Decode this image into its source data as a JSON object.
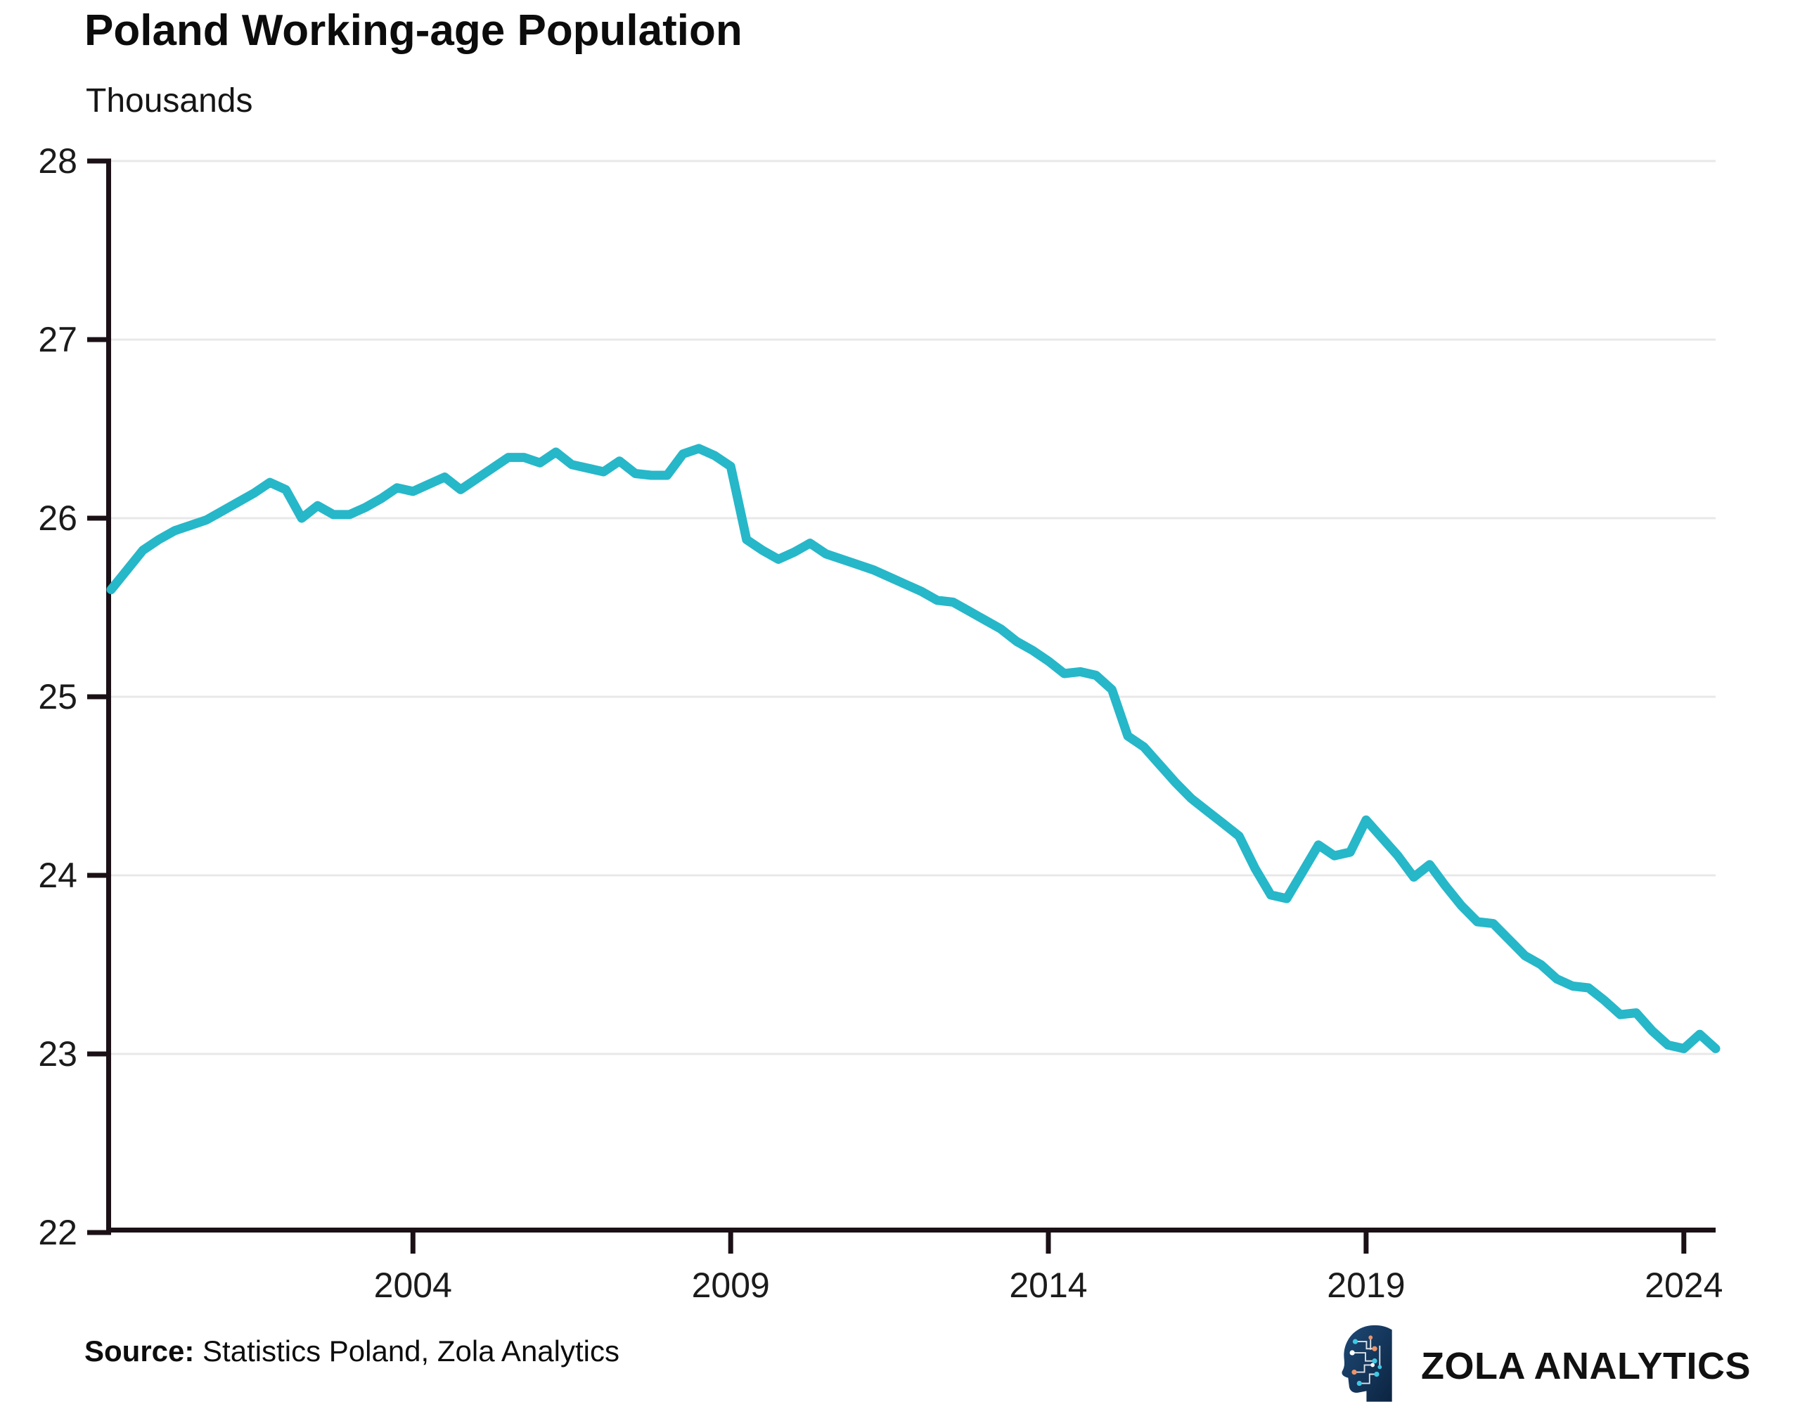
{
  "header": {
    "title": "Poland Working-age Population",
    "subtitle": "Thousands"
  },
  "source": {
    "label": "Source:",
    "text": " Statistics Poland, Zola Analytics"
  },
  "logo": {
    "icon": "head-circuit-icon",
    "text": "ZOLA ANALYTICS",
    "icon_color": "#15365c",
    "icon_accent_cyan": "#3fc9e3",
    "icon_accent_orange": "#ef9468"
  },
  "chart_data": {
    "type": "line",
    "title": "Poland Working-age Population",
    "ylabel": "Thousands",
    "xlabel": "",
    "grid": true,
    "legend": "none",
    "line_color": "#26b7c9",
    "grid_color": "#e8e8e8",
    "axis_color": "#1a1016",
    "tick_label_color": "#1b1b1b",
    "ylim": [
      22,
      28
    ],
    "xlim": [
      1999.25,
      2024.5
    ],
    "yticks": [
      22,
      23,
      24,
      25,
      26,
      27,
      28
    ],
    "xticks": [
      2004,
      2009,
      2014,
      2019,
      2024
    ],
    "x": [
      1999.25,
      1999.5,
      1999.75,
      2000.0,
      2000.25,
      2000.5,
      2000.75,
      2001.0,
      2001.25,
      2001.5,
      2001.75,
      2002.0,
      2002.25,
      2002.5,
      2002.75,
      2003.0,
      2003.25,
      2003.5,
      2003.75,
      2004.0,
      2004.25,
      2004.5,
      2004.75,
      2005.0,
      2005.25,
      2005.5,
      2005.75,
      2006.0,
      2006.25,
      2006.5,
      2006.75,
      2007.0,
      2007.25,
      2007.5,
      2007.75,
      2008.0,
      2008.25,
      2008.5,
      2008.75,
      2009.0,
      2009.25,
      2009.5,
      2009.75,
      2010.0,
      2010.25,
      2010.5,
      2010.75,
      2011.0,
      2011.25,
      2011.5,
      2011.75,
      2012.0,
      2012.25,
      2012.5,
      2012.75,
      2013.0,
      2013.25,
      2013.5,
      2013.75,
      2014.0,
      2014.25,
      2014.5,
      2014.75,
      2015.0,
      2015.25,
      2015.5,
      2015.75,
      2016.0,
      2016.25,
      2016.5,
      2016.75,
      2017.0,
      2017.25,
      2017.5,
      2017.75,
      2018.0,
      2018.25,
      2018.5,
      2018.75,
      2019.0,
      2019.25,
      2019.5,
      2019.75,
      2020.0,
      2020.25,
      2020.5,
      2020.75,
      2021.0,
      2021.25,
      2021.5,
      2021.75,
      2022.0,
      2022.25,
      2022.5,
      2022.75,
      2023.0,
      2023.25,
      2023.5,
      2023.75,
      2024.0,
      2024.25,
      2024.5
    ],
    "values": [
      25.6,
      25.71,
      25.82,
      25.88,
      25.93,
      25.96,
      25.99,
      26.04,
      26.09,
      26.14,
      26.2,
      26.16,
      26.0,
      26.07,
      26.02,
      26.02,
      26.06,
      26.11,
      26.17,
      26.15,
      26.19,
      26.23,
      26.16,
      26.22,
      26.28,
      26.34,
      26.34,
      26.31,
      26.37,
      26.3,
      26.28,
      26.26,
      26.32,
      26.25,
      26.24,
      26.24,
      26.36,
      26.39,
      26.35,
      26.29,
      25.88,
      25.82,
      25.77,
      25.81,
      25.86,
      25.8,
      25.77,
      25.74,
      25.71,
      25.67,
      25.63,
      25.59,
      25.54,
      25.53,
      25.48,
      25.43,
      25.38,
      25.31,
      25.26,
      25.2,
      25.13,
      25.14,
      25.12,
      25.04,
      24.78,
      24.72,
      24.62,
      24.52,
      24.43,
      24.36,
      24.29,
      24.22,
      24.04,
      23.89,
      23.87,
      24.02,
      24.17,
      24.11,
      24.13,
      24.31,
      24.21,
      24.11,
      23.99,
      24.06,
      23.94,
      23.83,
      23.74,
      23.73,
      23.64,
      23.55,
      23.5,
      23.42,
      23.38,
      23.37,
      23.3,
      23.22,
      23.23,
      23.13,
      23.05,
      23.03,
      23.11,
      23.03
    ]
  }
}
